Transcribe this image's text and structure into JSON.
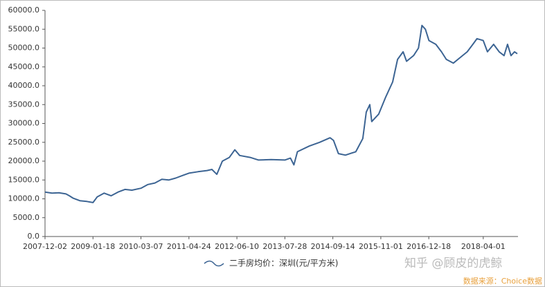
{
  "chart_data": {
    "type": "line",
    "x": [
      "2007-12-02",
      "2008-01-31",
      "2008-03-31",
      "2008-05-30",
      "2008-06-29",
      "2008-07-29",
      "2008-09-27",
      "2008-11-26",
      "2009-01-18",
      "2009-02-23",
      "2009-04-24",
      "2009-06-23",
      "2009-08-22",
      "2009-10-20",
      "2009-12-19",
      "2010-03-07",
      "2010-05-06",
      "2010-07-05",
      "2010-09-03",
      "2010-11-01",
      "2010-12-31",
      "2011-03-01",
      "2011-04-24",
      "2011-07-11",
      "2011-09-27",
      "2011-11-08",
      "2011-12-20",
      "2012-02-06",
      "2012-04-06",
      "2012-05-23",
      "2012-07-04",
      "2012-10-02",
      "2012-12-13",
      "2013-03-31",
      "2013-07-28",
      "2013-09-14",
      "2013-10-14",
      "2013-11-13",
      "2014-02-23",
      "2014-05-23",
      "2014-08-21",
      "2014-09-20",
      "2014-11-01",
      "2014-12-31",
      "2015-03-31",
      "2015-05-30",
      "2015-06-29",
      "2015-07-29",
      "2015-08-15",
      "2015-10-14",
      "2015-12-13",
      "2016-02-11",
      "2016-03-24",
      "2016-05-11",
      "2016-06-10",
      "2016-08-09",
      "2016-09-20",
      "2016-10-20",
      "2016-11-19",
      "2016-12-19",
      "2017-02-17",
      "2017-04-06",
      "2017-05-18",
      "2017-07-17",
      "2017-09-15",
      "2017-11-14",
      "2018-01-01",
      "2018-02-06",
      "2018-04-01",
      "2018-05-07",
      "2018-06-29",
      "2018-08-16",
      "2018-09-27",
      "2018-10-27",
      "2018-11-26",
      "2018-12-26",
      "2019-01-19"
    ],
    "series": [
      {
        "name": "二手房均价：深圳(元/平方米)",
        "color": "#3c6493",
        "values": [
          11800,
          11500,
          11600,
          11300,
          10800,
          10200,
          9500,
          9300,
          9000,
          10500,
          11500,
          10800,
          11800,
          12500,
          12300,
          12800,
          13800,
          14200,
          15200,
          15000,
          15500,
          16200,
          16800,
          17200,
          17500,
          17800,
          16500,
          20000,
          21000,
          23000,
          21500,
          21000,
          20300,
          20400,
          20300,
          20800,
          19000,
          22500,
          24000,
          25000,
          26200,
          25500,
          22000,
          21600,
          22500,
          26000,
          33000,
          35000,
          30500,
          32500,
          37000,
          41000,
          47000,
          49000,
          46500,
          48000,
          50000,
          56000,
          55000,
          52000,
          51000,
          49000,
          47000,
          46000,
          47500,
          49000,
          51000,
          52500,
          52000,
          49000,
          51000,
          49000,
          48000,
          51000,
          48000,
          49000,
          48500
        ]
      }
    ],
    "xlim": [
      "2007-12-02",
      "2019-01-25"
    ],
    "xticks": [
      "2007-12-02",
      "2009-01-18",
      "2010-03-07",
      "2011-04-24",
      "2012-06-10",
      "2013-07-28",
      "2014-09-14",
      "2015-11-01",
      "2016-12-18",
      "2018-04-01"
    ],
    "ylim": [
      0,
      60000
    ],
    "yticks": [
      {
        "value": 0,
        "label": "0.0"
      },
      {
        "value": 5000,
        "label": "5000.0"
      },
      {
        "value": 10000,
        "label": "10000.0"
      },
      {
        "value": 15000,
        "label": "15000.0"
      },
      {
        "value": 20000,
        "label": "20000.0"
      },
      {
        "value": 25000,
        "label": "25000.0"
      },
      {
        "value": 30000,
        "label": "30000.0"
      },
      {
        "value": 35000,
        "label": "35000.0"
      },
      {
        "value": 40000,
        "label": "40000.0"
      },
      {
        "value": 45000,
        "label": "45000.0"
      },
      {
        "value": 50000,
        "label": "50000.0"
      },
      {
        "value": 55000,
        "label": "55000.0"
      },
      {
        "value": 60000,
        "label": "60000.0"
      }
    ],
    "grid": false,
    "annotations": [
      "知乎 @顾皮的虎鲸",
      "数据来源：Choice数据"
    ]
  }
}
